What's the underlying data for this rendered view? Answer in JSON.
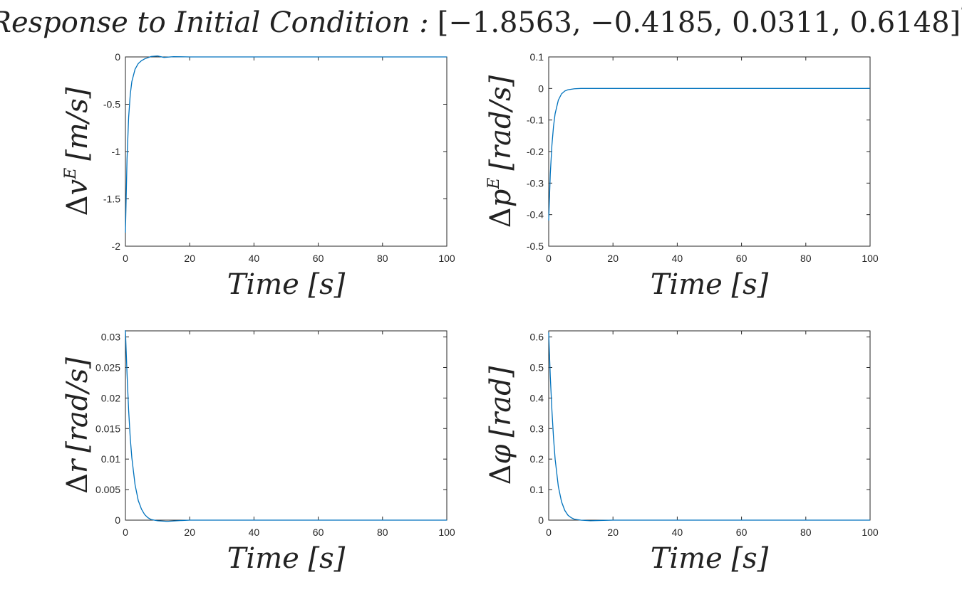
{
  "figure": {
    "title_prefix": "Response to Initial Condition :",
    "title_vector": "[−1.8563, −0.4185, 0.0311, 0.6148]",
    "title_sup": "T",
    "line_color": "#0072BD"
  },
  "chart_data": [
    {
      "type": "line",
      "xlabel": "Time [s]",
      "ylabel": {
        "delta": "Δ",
        "base": "v",
        "sup": "E",
        "unit": "[m/s]"
      },
      "xlim": [
        0,
        100
      ],
      "ylim": [
        -2,
        0
      ],
      "xticks": [
        0,
        20,
        40,
        60,
        80,
        100
      ],
      "yticks": [
        -2,
        -1.5,
        -1,
        -0.5,
        0
      ],
      "ytick_labels": [
        "-2",
        "-1.5",
        "-1",
        "-0.5",
        "0"
      ],
      "series": [
        {
          "x": [
            0,
            0.5,
            1,
            1.5,
            2,
            3,
            4,
            5,
            6,
            7,
            8,
            10,
            12,
            15,
            20,
            30,
            50,
            100
          ],
          "y": [
            -1.8563,
            -1.08,
            -0.64,
            -0.4,
            -0.26,
            -0.13,
            -0.07,
            -0.04,
            -0.02,
            -0.008,
            0.005,
            0.01,
            -0.005,
            0.003,
            0,
            0,
            0,
            0
          ]
        }
      ]
    },
    {
      "type": "line",
      "xlabel": "Time [s]",
      "ylabel": {
        "delta": "Δ",
        "base": "p",
        "sup": "E",
        "unit": "[rad/s]"
      },
      "xlim": [
        0,
        100
      ],
      "ylim": [
        -0.5,
        0.1
      ],
      "xticks": [
        0,
        20,
        40,
        60,
        80,
        100
      ],
      "yticks": [
        -0.5,
        -0.4,
        -0.3,
        -0.2,
        -0.1,
        0,
        0.1
      ],
      "ytick_labels": [
        "-0.5",
        "-0.4",
        "-0.3",
        "-0.2",
        "-0.1",
        "0",
        "0.1"
      ],
      "series": [
        {
          "x": [
            0,
            0.5,
            1,
            1.5,
            2,
            3,
            4,
            5,
            6,
            8,
            10,
            15,
            20,
            50,
            100
          ],
          "y": [
            -0.4185,
            -0.27,
            -0.18,
            -0.12,
            -0.08,
            -0.037,
            -0.017,
            -0.008,
            -0.004,
            -0.001,
            0,
            0,
            0,
            0,
            0
          ]
        }
      ]
    },
    {
      "type": "line",
      "xlabel": "Time [s]",
      "ylabel": {
        "delta": "Δ",
        "base": "r",
        "sup": "",
        "unit": "[rad/s]"
      },
      "xlim": [
        0,
        100
      ],
      "ylim": [
        0,
        0.031
      ],
      "xticks": [
        0,
        20,
        40,
        60,
        80,
        100
      ],
      "yticks": [
        0,
        0.005,
        0.01,
        0.015,
        0.02,
        0.025,
        0.03
      ],
      "ytick_labels": [
        "0",
        "0.005",
        "0.01",
        "0.015",
        "0.02",
        "0.025",
        "0.03"
      ],
      "series": [
        {
          "x": [
            0,
            0.5,
            1,
            1.5,
            2,
            3,
            4,
            5,
            6,
            7,
            8,
            10,
            13,
            16,
            20,
            30,
            50,
            100
          ],
          "y": [
            0.0311,
            0.024,
            0.018,
            0.0135,
            0.0102,
            0.0058,
            0.0032,
            0.0018,
            0.0009,
            0.0004,
            0.0001,
            -0.0001,
            -0.0002,
            -0.0001,
            0,
            0,
            0,
            0
          ]
        }
      ]
    },
    {
      "type": "line",
      "xlabel": "Time [s]",
      "ylabel": {
        "delta": "Δ",
        "base": "φ",
        "sup": "",
        "unit": "[rad]"
      },
      "xlim": [
        0,
        100
      ],
      "ylim": [
        0,
        0.62
      ],
      "xticks": [
        0,
        20,
        40,
        60,
        80,
        100
      ],
      "yticks": [
        0,
        0.1,
        0.2,
        0.3,
        0.4,
        0.5,
        0.6
      ],
      "ytick_labels": [
        "0",
        "0.1",
        "0.2",
        "0.3",
        "0.4",
        "0.5",
        "0.6"
      ],
      "series": [
        {
          "x": [
            0,
            0.5,
            1,
            1.5,
            2,
            3,
            4,
            5,
            6,
            7,
            8,
            10,
            13,
            16,
            20,
            30,
            50,
            100
          ],
          "y": [
            0.6148,
            0.47,
            0.36,
            0.27,
            0.2,
            0.11,
            0.06,
            0.032,
            0.016,
            0.008,
            0.003,
            0,
            -0.002,
            -0.001,
            0,
            0,
            0,
            0
          ]
        }
      ]
    }
  ]
}
